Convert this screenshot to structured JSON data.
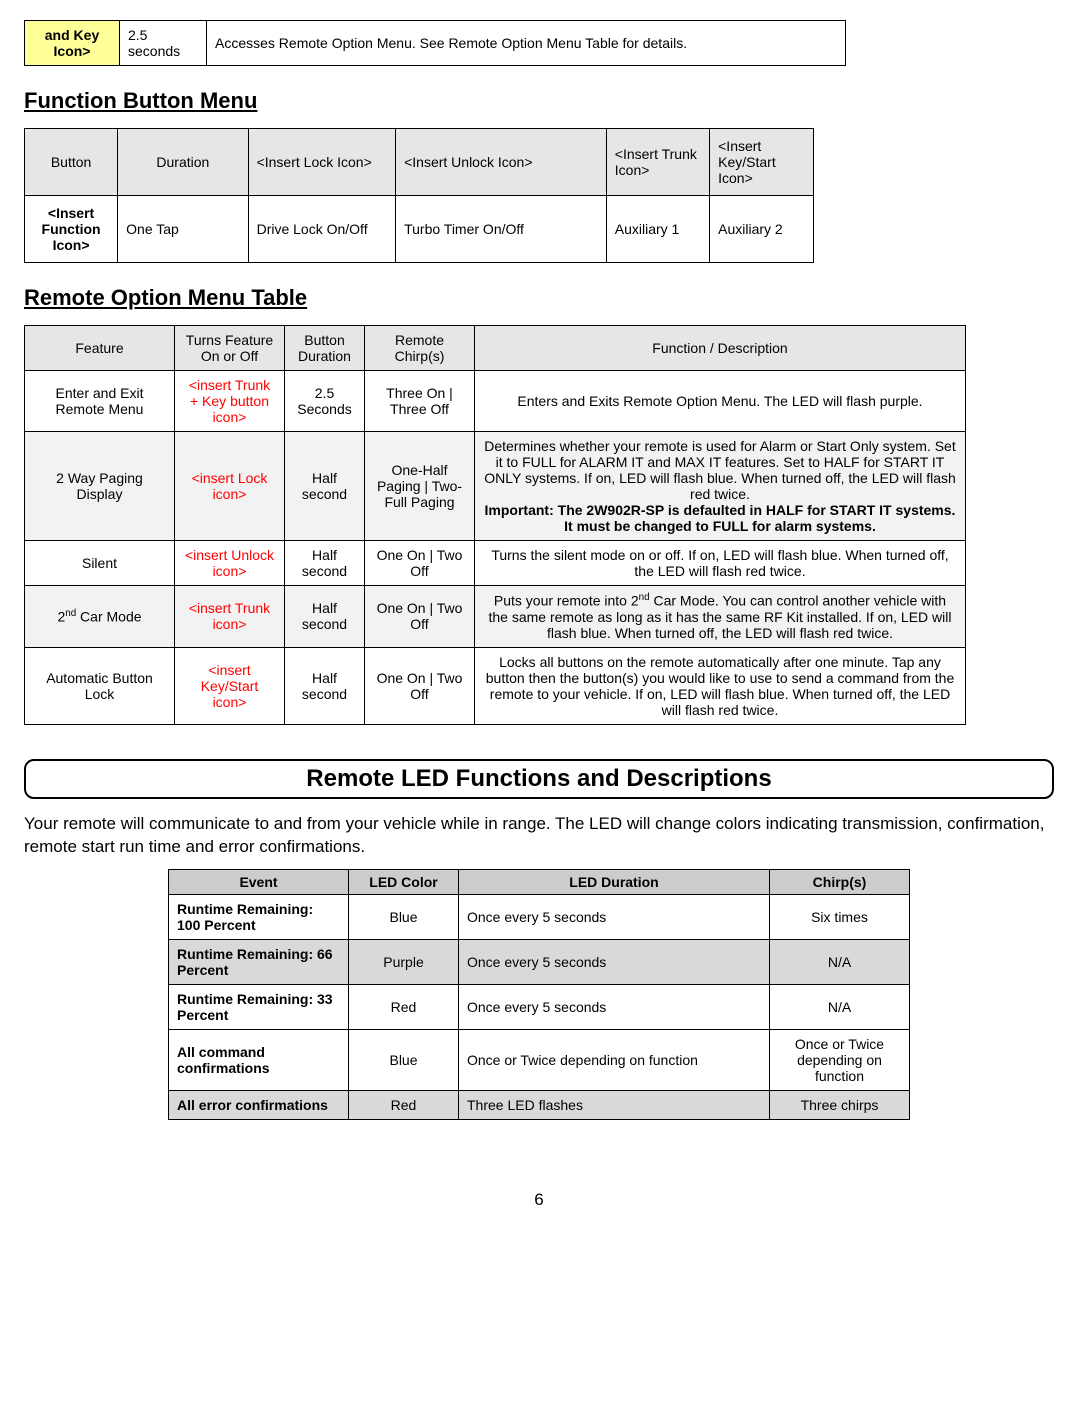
{
  "topRow": {
    "button": "and Key Icon>",
    "duration": "2.5 seconds",
    "desc": "Accesses Remote Option Menu. See Remote Option Menu Table for details."
  },
  "fbm": {
    "heading": "Function Button Menu",
    "headers": {
      "c1": "Button",
      "c2": "Duration",
      "c3": "<Insert Lock Icon>",
      "c4": "<Insert Unlock Icon>",
      "c5": "<Insert Trunk Icon>",
      "c6": "<Insert Key/Start Icon>"
    },
    "row": {
      "c1": "<Insert Function Icon>",
      "c2": "One Tap",
      "c3": "Drive Lock On/Off",
      "c4": "Turbo Timer On/Off",
      "c5": "Auxiliary 1",
      "c6": "Auxiliary 2"
    }
  },
  "rom": {
    "heading": "Remote Option Menu Table",
    "headers": {
      "feature": "Feature",
      "turns": "Turns Feature On or Off",
      "dur": "Button Duration",
      "chirp": "Remote Chirp(s)",
      "desc": "Function / Description"
    },
    "rows": [
      {
        "feature": "Enter and Exit Remote Menu",
        "turns": "<insert Trunk + Key button icon>",
        "dur": "2.5 Seconds",
        "chirp": "Three On | Three Off",
        "desc": "Enters and Exits Remote Option Menu. The LED will flash purple."
      },
      {
        "feature": "2 Way Paging Display",
        "turns": "<insert Lock icon>",
        "dur": "Half second",
        "chirp": "One-Half Paging | Two-Full Paging",
        "descPre": "Determines whether your remote is used for Alarm or Start Only system. Set it to FULL for ALARM IT and MAX IT features. Set to HALF for START IT ONLY systems. If on, LED will flash blue. When turned off, the LED will flash red twice.",
        "descBold": "Important: The 2W902R-SP is defaulted in HALF for START IT systems. It must be changed to FULL for alarm systems."
      },
      {
        "feature": "Silent",
        "turns": "<insert Unlock icon>",
        "dur": "Half second",
        "chirp": "One On | Two Off",
        "desc": "Turns the silent mode on or off. If on, LED will flash blue. When turned off, the LED will flash red twice."
      },
      {
        "feature_html": "2<sup>nd</sup> Car Mode",
        "turns": "<insert Trunk icon>",
        "dur": "Half second",
        "chirp": "One On | Two Off",
        "desc_html": "Puts your remote into 2<sup>nd</sup> Car Mode. You can control another vehicle with the same remote as long as it has the same RF Kit installed. If on, LED will flash blue. When turned off, the LED will flash red twice."
      },
      {
        "feature": "Automatic Button Lock",
        "turns": "<insert Key/Start icon>",
        "dur": "Half second",
        "chirp": "One On | Two Off",
        "desc": "Locks all buttons on the remote automatically after one minute. Tap any button then the button(s) you would like to use to send a command from the remote to your vehicle. If on, LED will flash blue. When turned off, the LED will flash red twice."
      }
    ]
  },
  "ledSection": {
    "banner": "Remote LED Functions and Descriptions",
    "intro": "Your remote will communicate to and from your vehicle while in range. The LED will change colors indicating transmission, confirmation, remote start run time and error confirmations.",
    "headers": {
      "event": "Event",
      "color": "LED Color",
      "dur": "LED Duration",
      "chirp": "Chirp(s)"
    },
    "rows": [
      {
        "event": "Runtime Remaining: 100 Percent",
        "color": "Blue",
        "dur": "Once every 5 seconds",
        "chirp": "Six times",
        "alt": false
      },
      {
        "event": "Runtime Remaining: 66 Percent",
        "color": "Purple",
        "dur": "Once every 5 seconds",
        "chirp": "N/A",
        "alt": true
      },
      {
        "event": "Runtime Remaining: 33 Percent",
        "color": "Red",
        "dur": "Once every 5 seconds",
        "chirp": "N/A",
        "alt": false
      },
      {
        "event": "All command confirmations",
        "color": "Blue",
        "dur": "Once or Twice depending on function",
        "chirp": "Once or Twice depending on function",
        "alt": false
      },
      {
        "event": "All error confirmations",
        "color": "Red",
        "dur": "Three LED flashes",
        "chirp": "Three chirps",
        "alt": true
      }
    ]
  },
  "pageNumber": "6",
  "colors": {
    "yellowHighlight": "#ffff99",
    "lightGray": "#e6e6e6",
    "altGray": "#f2f2f2",
    "ledHeader": "#cccccc",
    "ledAlt": "#d9d9d9",
    "red": "#ff0000"
  }
}
